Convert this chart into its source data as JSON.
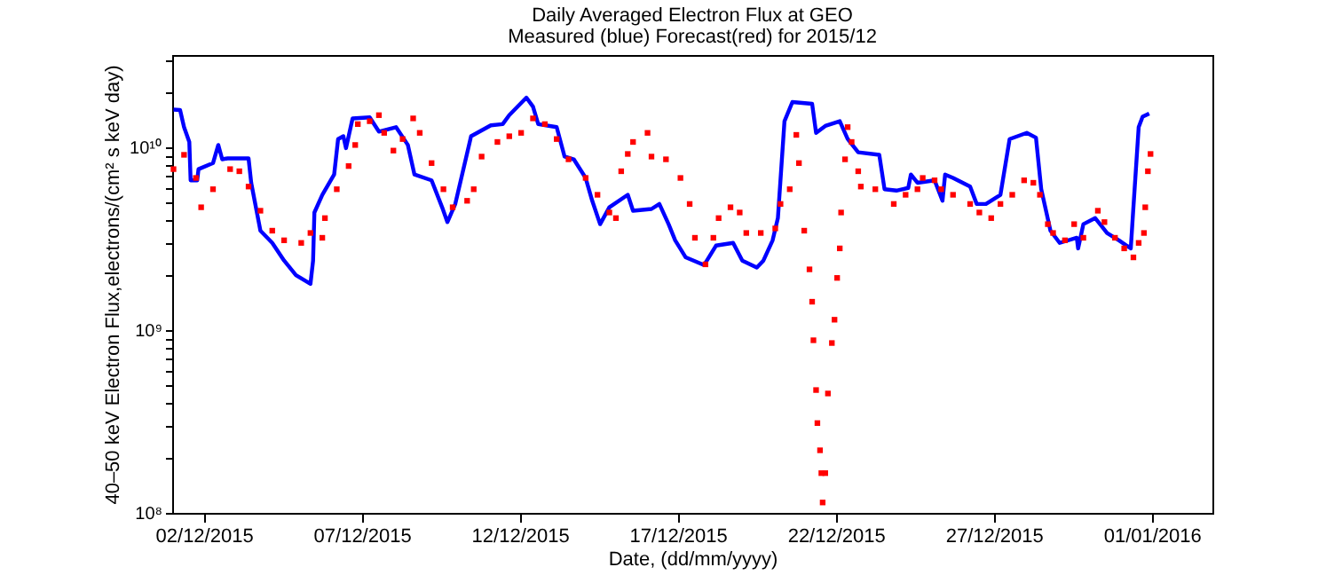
{
  "chart_data": {
    "type": "line",
    "title": "Daily Averaged Electron Flux at GEO",
    "subtitle": "Measured (blue) Forecast(red) for 2015/12",
    "xlabel": "Date, (dd/mm/yyyy)",
    "ylabel": "40–50 keV Electron Flux,electrons/(cm² s keV day)",
    "log": "y",
    "grid": false,
    "xlim": [
      "2015-12-01T00:00",
      "2016-01-02T22:00"
    ],
    "xticks": [
      {
        "value": "2015-12-02",
        "label": "02/12/2015"
      },
      {
        "value": "2015-12-07",
        "label": "07/12/2015"
      },
      {
        "value": "2015-12-12",
        "label": "12/12/2015"
      },
      {
        "value": "2015-12-17",
        "label": "17/12/2015"
      },
      {
        "value": "2015-12-22",
        "label": "22/12/2015"
      },
      {
        "value": "2015-12-27",
        "label": "27/12/2015"
      },
      {
        "value": "2016-01-01",
        "label": "01/01/2016"
      }
    ],
    "ylim": [
      100000000,
      32000000000
    ],
    "yticks": [
      {
        "value": 100000000,
        "label": "10⁸"
      },
      {
        "value": 200000000,
        "label": null
      },
      {
        "value": 300000000,
        "label": null
      },
      {
        "value": 400000000,
        "label": null
      },
      {
        "value": 500000000,
        "label": null
      },
      {
        "value": 600000000,
        "label": null
      },
      {
        "value": 700000000,
        "label": null
      },
      {
        "value": 800000000,
        "label": null
      },
      {
        "value": 900000000,
        "label": null
      },
      {
        "value": 1000000000,
        "label": "10⁹"
      },
      {
        "value": 2000000000,
        "label": null
      },
      {
        "value": 3000000000,
        "label": null
      },
      {
        "value": 4000000000,
        "label": null
      },
      {
        "value": 5000000000,
        "label": null
      },
      {
        "value": 6000000000,
        "label": null
      },
      {
        "value": 7000000000,
        "label": null
      },
      {
        "value": 8000000000,
        "label": null
      },
      {
        "value": 9000000000,
        "label": null
      },
      {
        "value": 10000000000,
        "label": "10¹⁰"
      },
      {
        "value": 20000000000,
        "label": null
      },
      {
        "value": 30000000000,
        "label": null
      }
    ],
    "series": [
      {
        "line_style": "solid",
        "color": "#0000ff",
        "x": [
          "2015-12-01T01:00",
          "2015-12-01T06:00",
          "2015-12-01T09:00",
          "2015-12-01T13:00",
          "2015-12-01T14:00",
          "2015-12-01T19:00",
          "2015-12-01T20:00",
          "2015-12-02T07:00",
          "2015-12-02T11:00",
          "2015-12-02T14:00",
          "2015-12-02T18:00",
          "2015-12-03T10:00",
          "2015-12-03T12:00",
          "2015-12-03T19:00",
          "2015-12-04T04:00",
          "2015-12-04T13:00",
          "2015-12-04T22:00",
          "2015-12-05T09:00",
          "2015-12-05T11:00",
          "2015-12-05T12:00",
          "2015-12-05T18:00",
          "2015-12-06T03:00",
          "2015-12-06T06:00",
          "2015-12-06T10:00",
          "2015-12-06T12:00",
          "2015-12-06T17:00",
          "2015-12-07T06:00",
          "2015-12-07T13:00",
          "2015-12-08T02:00",
          "2015-12-08T11:00",
          "2015-12-08T16:00",
          "2015-12-09T05:00",
          "2015-12-09T13:00",
          "2015-12-09T17:00",
          "2015-12-09T23:00",
          "2015-12-10T11:00",
          "2015-12-11T02:00",
          "2015-12-11T11:00",
          "2015-12-11T16:00",
          "2015-12-12T05:00",
          "2015-12-12T10:00",
          "2015-12-12T14:00",
          "2015-12-13T04:00",
          "2015-12-13T10:00",
          "2015-12-13T17:00",
          "2015-12-14T02:00",
          "2015-12-14T07:00",
          "2015-12-14T13:00",
          "2015-12-14T20:00",
          "2015-12-15T10:00",
          "2015-12-15T14:00",
          "2015-12-16T04:00",
          "2015-12-16T10:00",
          "2015-12-16T17:00",
          "2015-12-16T22:00",
          "2015-12-17T06:00",
          "2015-12-17T20:00",
          "2015-12-18T05:00",
          "2015-12-18T18:00",
          "2015-12-19T01:00",
          "2015-12-19T12:00",
          "2015-12-19T17:00",
          "2015-12-20T00:00",
          "2015-12-20T04:00",
          "2015-12-20T09:00",
          "2015-12-20T15:00",
          "2015-12-21T06:00",
          "2015-12-21T09:00",
          "2015-12-21T16:00",
          "2015-12-22T03:00",
          "2015-12-22T09:00",
          "2015-12-22T17:00",
          "2015-12-23T09:00",
          "2015-12-23T13:00",
          "2015-12-23T22:00",
          "2015-12-24T07:00",
          "2015-12-24T09:00",
          "2015-12-24T14:00",
          "2015-12-25T03:00",
          "2015-12-25T09:00",
          "2015-12-25T11:00",
          "2015-12-25T17:00",
          "2015-12-26T06:00",
          "2015-12-26T11:00",
          "2015-12-26T18:00",
          "2015-12-27T05:00",
          "2015-12-27T12:00",
          "2015-12-28T01:00",
          "2015-12-28T08:00",
          "2015-12-28T12:00",
          "2015-12-28T19:00",
          "2015-12-29T02:00",
          "2015-12-29T15:00",
          "2015-12-29T16:00",
          "2015-12-29T20:00",
          "2015-12-30T05:00",
          "2015-12-30T14:00",
          "2015-12-30T23:00",
          "2015-12-31T08:00",
          "2015-12-31T10:00",
          "2015-12-31T14:00",
          "2015-12-31T17:00",
          "2015-12-31T22:00"
        ],
        "values": [
          16100000000.0,
          16000000000.0,
          12900000000.0,
          10700000000.0,
          6600000000.0,
          6600000000.0,
          7600000000.0,
          8200000000.0,
          10300000000.0,
          8600000000.0,
          8700000000.0,
          8700000000.0,
          6400000000.0,
          3500000000.0,
          3000000000.0,
          2400000000.0,
          2000000000.0,
          1790000000.0,
          2400000000.0,
          4400000000.0,
          5500000000.0,
          7100000000.0,
          11100000000.0,
          11500000000.0,
          9900000000.0,
          14400000000.0,
          14600000000.0,
          12200000000.0,
          12900000000.0,
          10300000000.0,
          7100000000.0,
          6600000000.0,
          4700000000.0,
          3900000000.0,
          4900000000.0,
          11500000000.0,
          13200000000.0,
          13400000000.0,
          15000000000.0,
          18700000000.0,
          16700000000.0,
          13400000000.0,
          12900000000.0,
          8900000000.0,
          8600000000.0,
          6800000000.0,
          5100000000.0,
          3800000000.0,
          4700000000.0,
          5500000000.0,
          4500000000.0,
          4600000000.0,
          4900000000.0,
          3800000000.0,
          3100000000.0,
          2500000000.0,
          2270000000.0,
          2900000000.0,
          3000000000.0,
          2400000000.0,
          2200000000.0,
          2400000000.0,
          3100000000.0,
          4100000000.0,
          13900000000.0,
          17700000000.0,
          17300000000.0,
          12000000000.0,
          13100000000.0,
          13900000000.0,
          11100000000.0,
          9400000000.0,
          9100000000.0,
          5900000000.0,
          5800000000.0,
          6000000000.0,
          7100000000.0,
          6400000000.0,
          6600000000.0,
          5100000000.0,
          7100000000.0,
          6800000000.0,
          6100000000.0,
          4900000000.0,
          4900000000.0,
          5500000000.0,
          11100000000.0,
          12000000000.0,
          11300000000.0,
          5900000000.0,
          3500000000.0,
          3000000000.0,
          3200000000.0,
          2800000000.0,
          3800000000.0,
          4100000000.0,
          3400000000.0,
          3100000000.0,
          2800000000.0,
          4700000000.0,
          12900000000.0,
          14700000000.0,
          15300000000.0
        ]
      },
      {
        "type": "scatter",
        "marker": "square",
        "color": "#ff0000",
        "x": [
          "2015-12-01T01:00",
          "2015-12-01T09:00",
          "2015-12-01T18:00",
          "2015-12-01T22:00",
          "2015-12-02T07:00",
          "2015-12-02T20:00",
          "2015-12-03T03:00",
          "2015-12-03T10:00",
          "2015-12-03T19:00",
          "2015-12-04T04:00",
          "2015-12-04T13:00",
          "2015-12-05T02:00",
          "2015-12-05T09:00",
          "2015-12-05T18:00",
          "2015-12-05T20:00",
          "2015-12-06T05:00",
          "2015-12-06T14:00",
          "2015-12-06T19:00",
          "2015-12-06T21:00",
          "2015-12-07T06:00",
          "2015-12-07T13:00",
          "2015-12-07T17:00",
          "2015-12-08T00:00",
          "2015-12-08T07:00",
          "2015-12-08T15:00",
          "2015-12-08T20:00",
          "2015-12-09T05:00",
          "2015-12-09T14:00",
          "2015-12-09T21:00",
          "2015-12-10T08:00",
          "2015-12-10T13:00",
          "2015-12-10T19:00",
          "2015-12-11T07:00",
          "2015-12-11T16:00",
          "2015-12-12T01:00",
          "2015-12-12T10:00",
          "2015-12-12T19:00",
          "2015-12-13T04:00",
          "2015-12-13T13:00",
          "2015-12-14T02:00",
          "2015-12-14T11:00",
          "2015-12-14T20:00",
          "2015-12-15T01:00",
          "2015-12-15T05:00",
          "2015-12-15T10:00",
          "2015-12-15T14:00",
          "2015-12-16T01:00",
          "2015-12-16T04:00",
          "2015-12-16T15:00",
          "2015-12-17T02:00",
          "2015-12-17T09:00",
          "2015-12-17T13:00",
          "2015-12-17T21:00",
          "2015-12-18T03:00",
          "2015-12-18T07:00",
          "2015-12-18T16:00",
          "2015-12-18T23:00",
          "2015-12-19T04:00",
          "2015-12-19T15:00",
          "2015-12-20T02:00",
          "2015-12-20T06:00",
          "2015-12-20T13:00",
          "2015-12-20T18:00",
          "2015-12-20T20:00",
          "2015-12-21T00:00",
          "2015-12-21T04:00",
          "2015-12-21T06:00",
          "2015-12-21T07:00",
          "2015-12-21T09:00",
          "2015-12-21T10:00",
          "2015-12-21T12:00",
          "2015-12-21T13:00",
          "2015-12-21T14:00",
          "2015-12-21T16:00",
          "2015-12-21T18:00",
          "2015-12-21T21:00",
          "2015-12-21T23:00",
          "2015-12-22T01:00",
          "2015-12-22T03:00",
          "2015-12-22T04:00",
          "2015-12-22T07:00",
          "2015-12-22T09:00",
          "2015-12-22T12:00",
          "2015-12-22T17:00",
          "2015-12-22T19:00",
          "2015-12-23T06:00",
          "2015-12-23T20:00",
          "2015-12-24T05:00",
          "2015-12-24T14:00",
          "2015-12-24T18:00",
          "2015-12-25T03:00",
          "2015-12-25T08:00",
          "2015-12-25T17:00",
          "2015-12-26T06:00",
          "2015-12-26T13:00",
          "2015-12-26T22:00",
          "2015-12-27T05:00",
          "2015-12-27T14:00",
          "2015-12-27T23:00",
          "2015-12-28T06:00",
          "2015-12-28T11:00",
          "2015-12-28T17:00",
          "2015-12-28T21:00",
          "2015-12-29T06:00",
          "2015-12-29T13:00",
          "2015-12-29T20:00",
          "2015-12-30T07:00",
          "2015-12-30T12:00",
          "2015-12-30T20:00",
          "2015-12-31T03:00",
          "2015-12-31T10:00",
          "2015-12-31T14:00",
          "2015-12-31T18:00",
          "2015-12-31T19:00",
          "2015-12-31T21:00",
          "2015-12-31T23:00"
        ],
        "values": [
          7600000000.0,
          9100000000.0,
          6800000000.0,
          4700000000.0,
          5900000000.0,
          7600000000.0,
          7400000000.0,
          6100000000.0,
          4500000000.0,
          3500000000.0,
          3100000000.0,
          3000000000.0,
          3400000000.0,
          3200000000.0,
          4100000000.0,
          5900000000.0,
          7900000000.0,
          10300000000.0,
          13400000000.0,
          13900000000.0,
          15000000000.0,
          12000000000.0,
          9600000000.0,
          11100000000.0,
          14400000000.0,
          12000000000.0,
          8200000000.0,
          5900000000.0,
          4700000000.0,
          5100000000.0,
          5900000000.0,
          8900000000.0,
          10700000000.0,
          11500000000.0,
          12000000000.0,
          14400000000.0,
          13400000000.0,
          11100000000.0,
          8600000000.0,
          6800000000.0,
          5500000000.0,
          4400000000.0,
          4100000000.0,
          7400000000.0,
          9200000000.0,
          10700000000.0,
          12000000000.0,
          8900000000.0,
          8600000000.0,
          6800000000.0,
          4900000000.0,
          3200000000.0,
          2290000000.0,
          3200000000.0,
          4100000000.0,
          4700000000.0,
          4400000000.0,
          3400000000.0,
          3400000000.0,
          3600000000.0,
          4900000000.0,
          5900000000.0,
          11700000000.0,
          8200000000.0,
          3500000000.0,
          2150000000.0,
          1430000000.0,
          880000000.0,
          470000000.0,
          310000000.0,
          220000000.0,
          165000000.0,
          114000000.0,
          165000000.0,
          450000000.0,
          850000000.0,
          1140000000.0,
          1930000000.0,
          2800000000.0,
          4400000000.0,
          8600000000.0,
          12900000000.0,
          10700000000.0,
          7400000000.0,
          6100000000.0,
          5900000000.0,
          4900000000.0,
          5500000000.0,
          5900000000.0,
          6800000000.0,
          6600000000.0,
          5900000000.0,
          5500000000.0,
          4900000000.0,
          4400000000.0,
          4100000000.0,
          4900000000.0,
          5500000000.0,
          6600000000.0,
          6400000000.0,
          5500000000.0,
          3800000000.0,
          3400000000.0,
          3100000000.0,
          3800000000.0,
          3200000000.0,
          4500000000.0,
          3900000000.0,
          3200000000.0,
          2800000000.0,
          2500000000.0,
          3000000000.0,
          3400000000.0,
          4700000000.0,
          7400000000.0,
          9200000000.0
        ]
      }
    ]
  }
}
